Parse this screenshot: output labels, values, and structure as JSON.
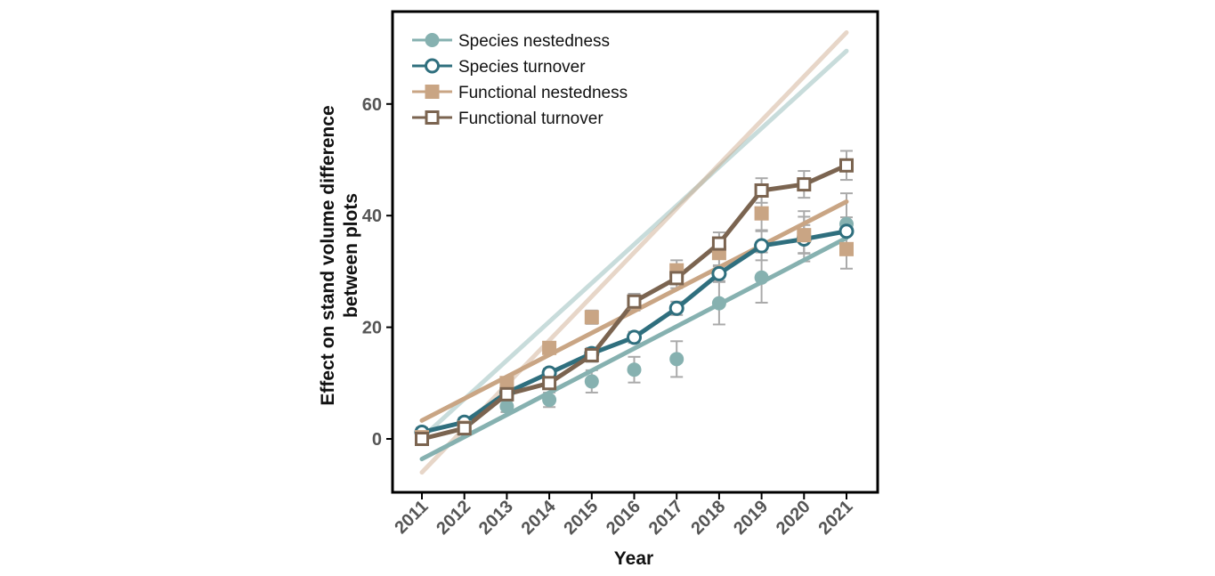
{
  "chart_data": {
    "type": "line",
    "title": "",
    "xlabel": "Year",
    "ylabel_lines": [
      "Effect on stand volume difference",
      "between plots"
    ],
    "categories": [
      "2011",
      "2012",
      "2013",
      "2014",
      "2015",
      "2016",
      "2017",
      "2018",
      "2019",
      "2020",
      "2021"
    ],
    "yticks": [
      0,
      20,
      40,
      60
    ],
    "ylim": [
      -9.5,
      76.5
    ],
    "grid": false,
    "legend": "top-left",
    "series": [
      {
        "name": "Species nestedness",
        "color": "#86b1b0",
        "marker": "circle-filled",
        "values": [
          0.5,
          1.7,
          5.8,
          7.0,
          10.3,
          12.4,
          14.3,
          24.3,
          28.9,
          36.3,
          38.5
        ],
        "errors": [
          1.0,
          1.0,
          1.0,
          1.3,
          2.0,
          2.3,
          3.2,
          3.8,
          4.5,
          4.5,
          5.5
        ],
        "fit": [
          -3.6,
          36.0
        ],
        "fit_faint": [
          0.2,
          69.5
        ]
      },
      {
        "name": "Species turnover",
        "color": "#2f6f7e",
        "marker": "circle-open",
        "values": [
          1.2,
          3.0,
          8.3,
          11.8,
          15.3,
          18.2,
          23.4,
          29.6,
          34.6,
          35.8,
          37.2
        ],
        "errors": [
          0.8,
          0.8,
          0.8,
          0.8,
          1.0,
          1.0,
          1.2,
          1.3,
          2.6,
          2.5,
          2.5
        ]
      },
      {
        "name": "Functional nestedness",
        "color": "#c9a584",
        "marker": "square-filled",
        "values": [
          0.3,
          2.0,
          10.0,
          16.3,
          21.8,
          24.5,
          30.2,
          33.3,
          40.4,
          36.5,
          34.0
        ],
        "errors": [
          0.8,
          0.8,
          0.9,
          1.0,
          1.2,
          1.5,
          1.8,
          2.2,
          3.0,
          3.3,
          3.5
        ],
        "fit": [
          3.3,
          42.5
        ],
        "fit_faint": [
          -6.0,
          72.8
        ]
      },
      {
        "name": "Functional turnover",
        "color": "#7b6450",
        "marker": "square-open",
        "values": [
          0.0,
          1.9,
          8.0,
          10.0,
          15.0,
          24.6,
          28.8,
          35.0,
          44.5,
          45.6,
          49.0
        ],
        "errors": [
          0.8,
          0.8,
          0.9,
          1.0,
          1.2,
          1.3,
          1.8,
          2.0,
          2.2,
          2.4,
          2.6
        ]
      }
    ]
  }
}
